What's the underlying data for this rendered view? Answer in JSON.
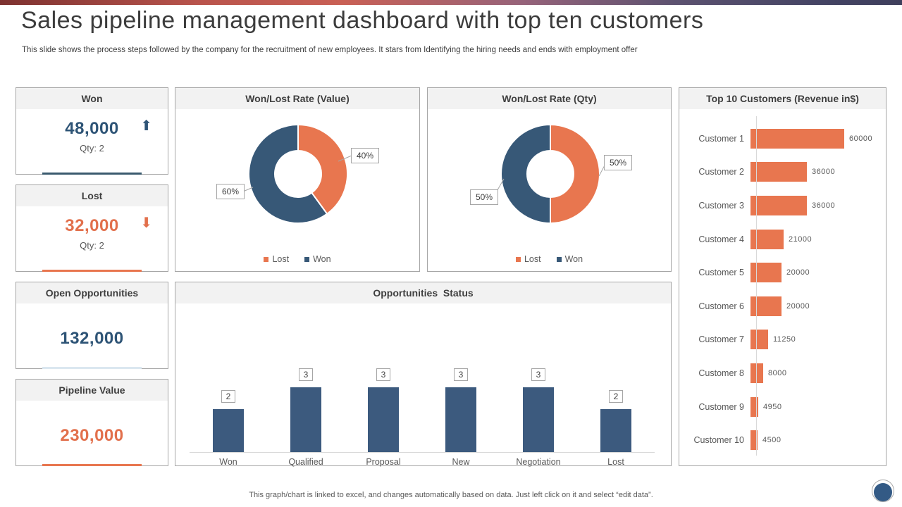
{
  "slide": {
    "title": "Sales pipeline management dashboard with top ten customers",
    "subtitle": "This slide shows the process steps followed by the company for the recruitment of new employees. It stars from Identifying the hiring needs and ends with employment offer",
    "footer": "This graph/chart is linked to excel,  and changes automatically based on data. Just left click on it and select “edit data”."
  },
  "icons": {
    "up_arrow": "⬆",
    "down_arrow": "⬇"
  },
  "colors": {
    "orange": "#e8764f",
    "blue": "#375877",
    "column_blue": "#3c5a7e",
    "blue_text": "#2e5476",
    "orange_text": "#e2704c"
  },
  "kpis": [
    {
      "label": "Won",
      "value": "48,000",
      "qty": "Qty: 2",
      "trend": "up"
    },
    {
      "label": "Lost",
      "value": "32,000",
      "qty": "Qty: 2",
      "trend": "down"
    },
    {
      "label": "Open Opportunities",
      "value": "132,000"
    },
    {
      "label": "Pipeline Value",
      "value": "230,000"
    }
  ],
  "chart_data": [
    {
      "type": "pie",
      "subtype": "donut",
      "title": "Won/Lost Rate (Value)",
      "labels": [
        "Lost",
        "Won"
      ],
      "values": [
        40,
        60
      ],
      "unit": "percent",
      "data_labels": [
        "40%",
        "60%"
      ],
      "legend": [
        "Lost",
        "Won"
      ],
      "legend_position": "bottom",
      "slice_colors": [
        "#e8764f",
        "#375877"
      ]
    },
    {
      "type": "pie",
      "subtype": "donut",
      "title": "Won/Lost Rate (Qty)",
      "labels": [
        "Lost",
        "Won"
      ],
      "values": [
        50,
        50
      ],
      "unit": "percent",
      "data_labels": [
        "50%",
        "50%"
      ],
      "legend": [
        "Lost",
        "Won"
      ],
      "legend_position": "bottom",
      "slice_colors": [
        "#e8764f",
        "#375877"
      ]
    },
    {
      "type": "bar",
      "orientation": "vertical",
      "title": "Opportunities  Status",
      "categories": [
        "Won",
        "Qualified",
        "Proposal",
        "New",
        "Negotiation",
        "Lost"
      ],
      "values": [
        2,
        3,
        3,
        3,
        3,
        2
      ],
      "ylim": [
        0,
        3.5
      ],
      "data_labels_boxed": true,
      "bar_color": "#3c5a7e"
    },
    {
      "type": "bar",
      "orientation": "horizontal",
      "title": "Top 10 Customers (Revenue in$)",
      "categories": [
        "Customer 1",
        "Customer 2",
        "Customer 3",
        "Customer 4",
        "Customer 5",
        "Customer 6",
        "Customer 7",
        "Customer 8",
        "Customer 9",
        "Customer 10"
      ],
      "values": [
        60000,
        36000,
        36000,
        21000,
        20000,
        20000,
        11250,
        8000,
        4950,
        4500
      ],
      "xlim": [
        0,
        62000
      ],
      "bar_color": "#e8764f"
    }
  ]
}
